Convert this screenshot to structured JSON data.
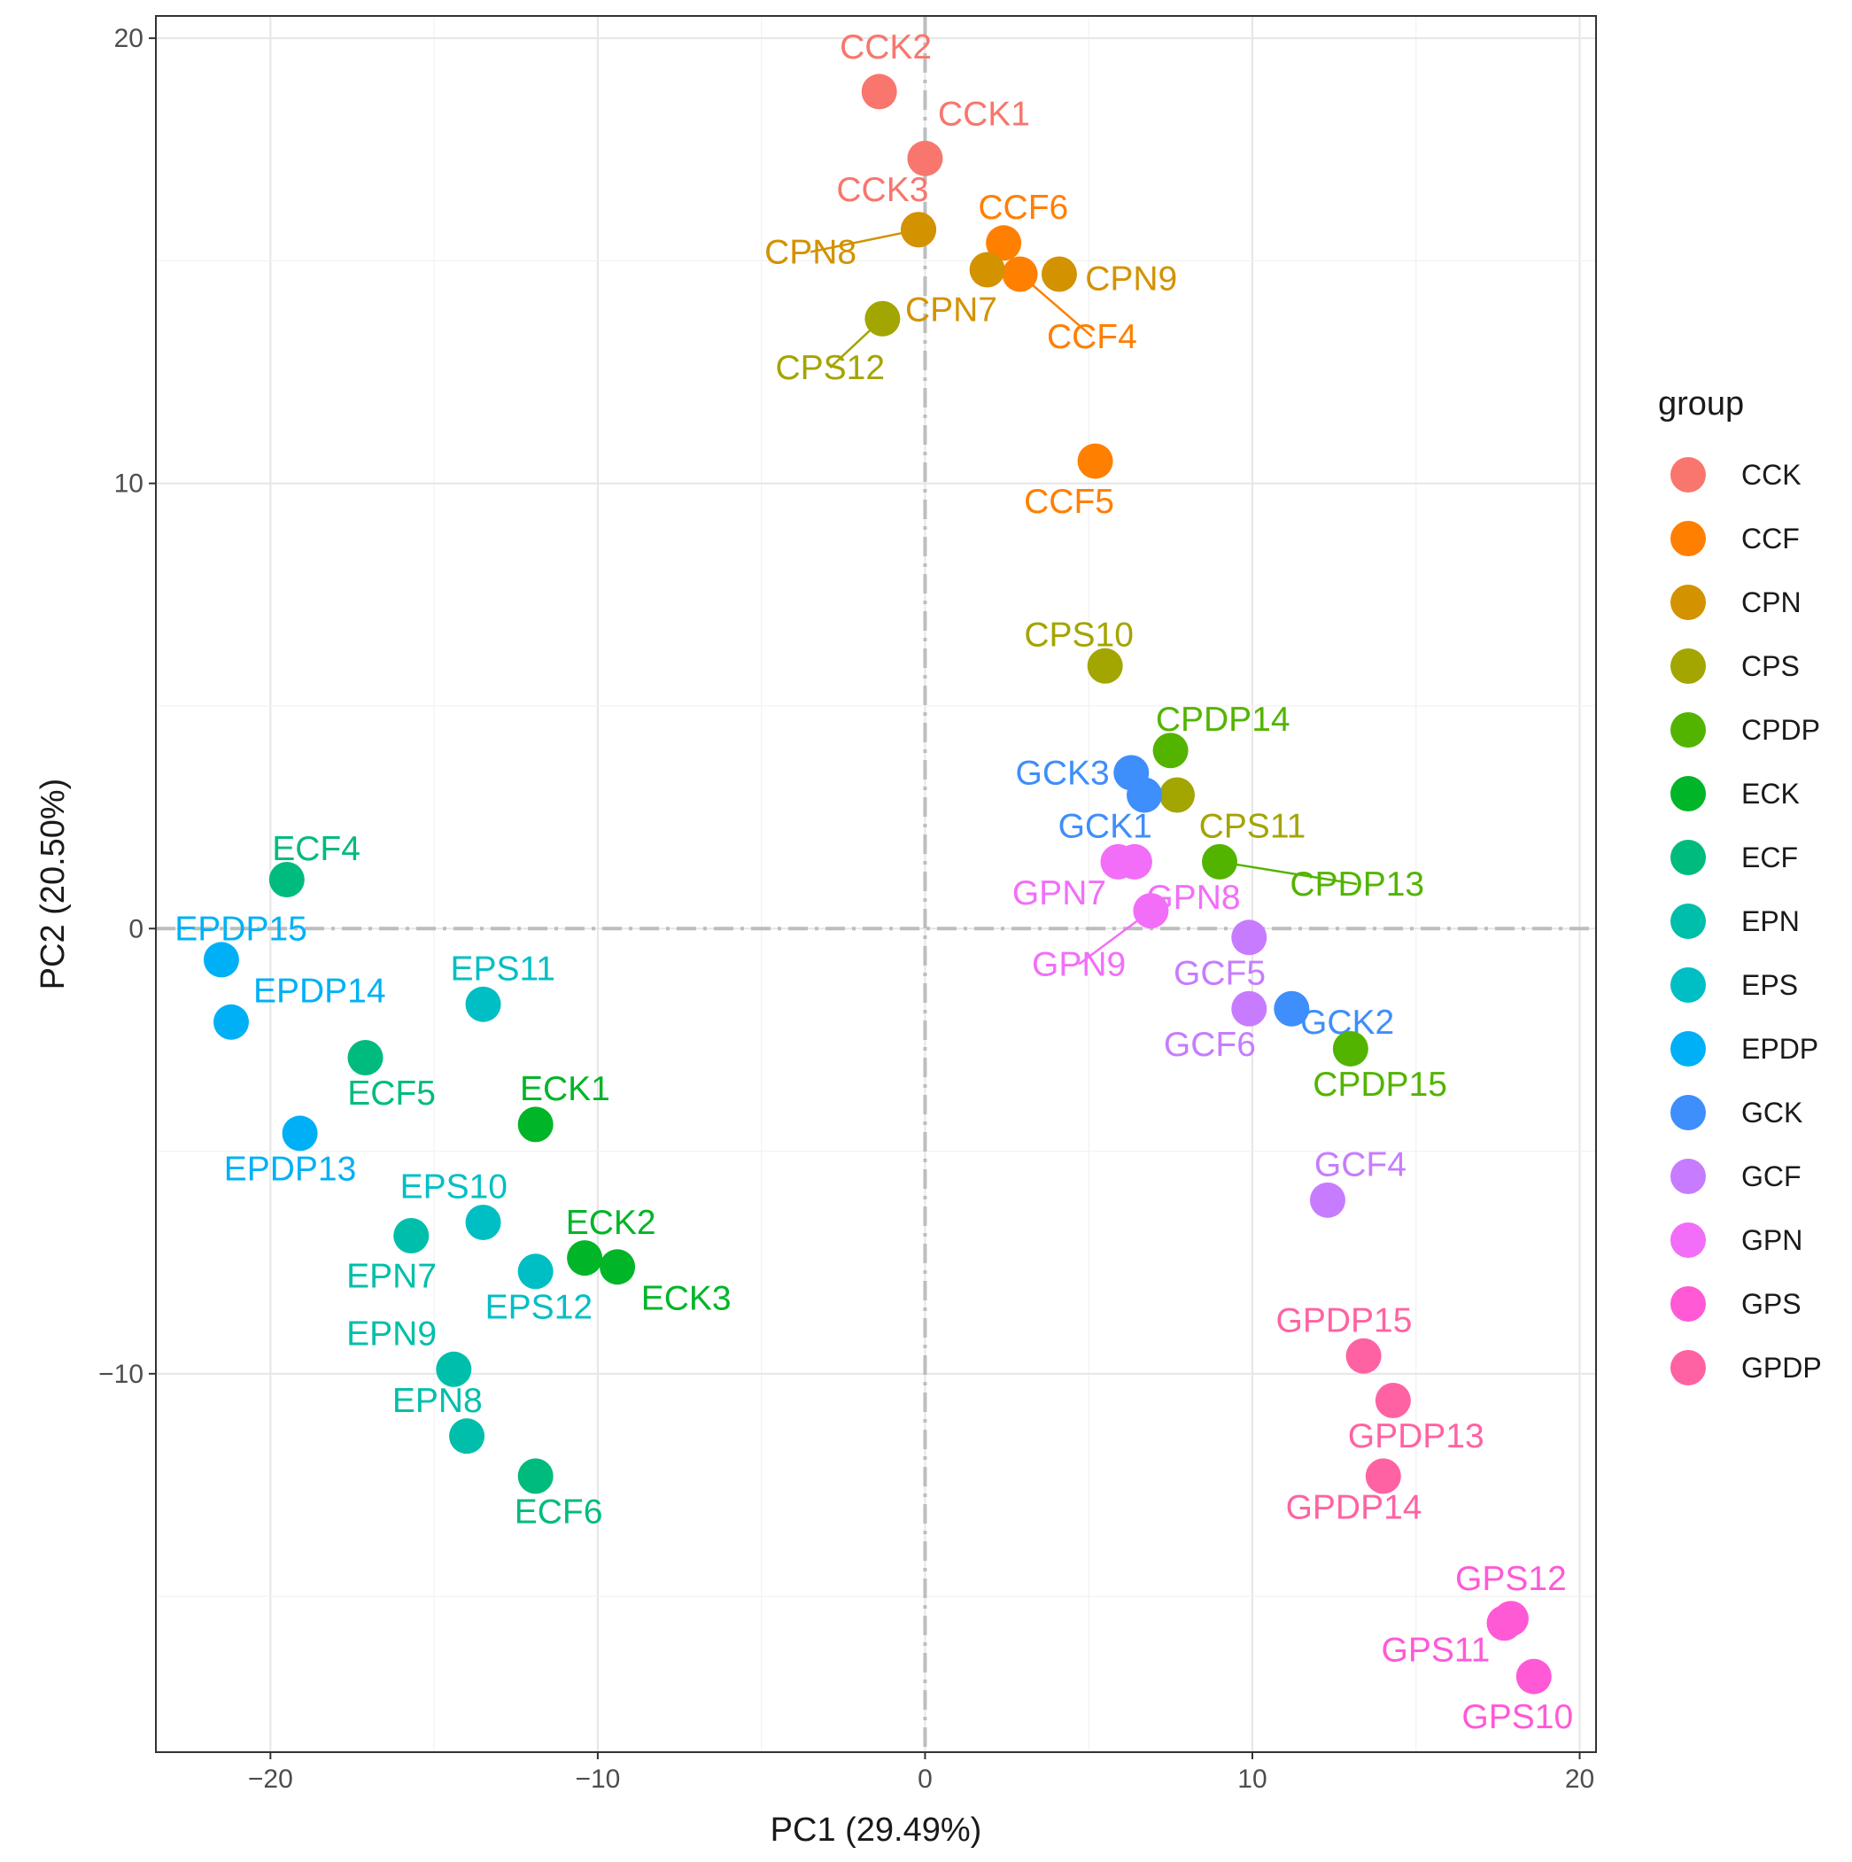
{
  "chart_data": {
    "type": "scatter",
    "title": "",
    "xlabel": "PC1 (29.49%)",
    "ylabel": "PC2 (20.50%)",
    "xlim": [
      -23.5,
      20.5
    ],
    "ylim": [
      -18.5,
      20.5
    ],
    "xticks": [
      -20,
      -10,
      0,
      10,
      20
    ],
    "yticks": [
      -10,
      0,
      10,
      20
    ],
    "xtick_labels": [
      "−20",
      "−10",
      "0",
      "10",
      "20"
    ],
    "ytick_labels": [
      "−10",
      "0",
      "10",
      "20"
    ],
    "grid": true,
    "reference_lines": {
      "x": 0,
      "y": 0,
      "style": "dash-dot"
    },
    "legend_title": "group",
    "legend_position": "right",
    "groups": [
      {
        "name": "CCK",
        "color": "#F8766D"
      },
      {
        "name": "CCF",
        "color": "#FF7F00"
      },
      {
        "name": "CPN",
        "color": "#D39200"
      },
      {
        "name": "CPS",
        "color": "#A3A500"
      },
      {
        "name": "CPDP",
        "color": "#53B400"
      },
      {
        "name": "ECK",
        "color": "#00B528"
      },
      {
        "name": "ECF",
        "color": "#00BB7E"
      },
      {
        "name": "EPN",
        "color": "#00BFAA"
      },
      {
        "name": "EPS",
        "color": "#00BFC4"
      },
      {
        "name": "EPDP",
        "color": "#00B0F6"
      },
      {
        "name": "GCK",
        "color": "#3E8EFB"
      },
      {
        "name": "GCF",
        "color": "#C77CFF"
      },
      {
        "name": "GPN",
        "color": "#F26EF9"
      },
      {
        "name": "GPS",
        "color": "#FF59D6"
      },
      {
        "name": "GPDP",
        "color": "#FF62A2"
      }
    ],
    "points": [
      {
        "label": "CCK2",
        "group": "CCK",
        "x": -1.4,
        "y": 18.8,
        "lx": -1.2,
        "ly": 19.8,
        "leader": false
      },
      {
        "label": "CCK1",
        "group": "CCK",
        "x": 0.0,
        "y": 17.3,
        "lx": 1.8,
        "ly": 18.3,
        "leader": false
      },
      {
        "label": "CCK3",
        "group": "CCK",
        "x": -0.2,
        "y": 15.7,
        "lx": -1.3,
        "ly": 16.6,
        "leader": false
      },
      {
        "label": "CCF6",
        "group": "CCF",
        "x": 2.4,
        "y": 15.4,
        "lx": 3.0,
        "ly": 16.2,
        "leader": false
      },
      {
        "label": "CCF4",
        "group": "CCF",
        "x": 2.9,
        "y": 14.7,
        "lx": 5.1,
        "ly": 13.3,
        "leader": true
      },
      {
        "label": "CCF5",
        "group": "CCF",
        "x": 5.2,
        "y": 10.5,
        "lx": 4.4,
        "ly": 9.6,
        "leader": false
      },
      {
        "label": "CPN8",
        "group": "CPN",
        "x": -0.2,
        "y": 15.7,
        "lx": -3.5,
        "ly": 15.2,
        "leader": true
      },
      {
        "label": "CPN7",
        "group": "CPN",
        "x": 1.9,
        "y": 14.8,
        "lx": 0.8,
        "ly": 13.9,
        "leader": false
      },
      {
        "label": "CPN9",
        "group": "CPN",
        "x": 4.1,
        "y": 14.7,
        "lx": 6.3,
        "ly": 14.6,
        "leader": false
      },
      {
        "label": "CPS12",
        "group": "CPS",
        "x": -1.3,
        "y": 13.7,
        "lx": -2.9,
        "ly": 12.6,
        "leader": true
      },
      {
        "label": "CPS10",
        "group": "CPS",
        "x": 5.5,
        "y": 5.9,
        "lx": 4.7,
        "ly": 6.6,
        "leader": false
      },
      {
        "label": "CPS11",
        "group": "CPS",
        "x": 7.7,
        "y": 3.0,
        "lx": 10.0,
        "ly": 2.3,
        "leader": false
      },
      {
        "label": "CPDP14",
        "group": "CPDP",
        "x": 7.5,
        "y": 4.0,
        "lx": 9.1,
        "ly": 4.7,
        "leader": false
      },
      {
        "label": "CPDP13",
        "group": "CPDP",
        "x": 9.0,
        "y": 1.5,
        "lx": 13.2,
        "ly": 1.0,
        "leader": true
      },
      {
        "label": "CPDP15",
        "group": "CPDP",
        "x": 13.0,
        "y": -2.7,
        "lx": 13.9,
        "ly": -3.5,
        "leader": false
      },
      {
        "label": "ECK1",
        "group": "ECK",
        "x": -11.9,
        "y": -4.4,
        "lx": -11.0,
        "ly": -3.6,
        "leader": false
      },
      {
        "label": "ECK2",
        "group": "ECK",
        "x": -10.4,
        "y": -7.4,
        "lx": -9.6,
        "ly": -6.6,
        "leader": false
      },
      {
        "label": "ECK3",
        "group": "ECK",
        "x": -9.4,
        "y": -7.6,
        "lx": -7.3,
        "ly": -8.3,
        "leader": false
      },
      {
        "label": "ECF4",
        "group": "ECF",
        "x": -19.5,
        "y": 1.1,
        "lx": -18.6,
        "ly": 1.8,
        "leader": false
      },
      {
        "label": "ECF5",
        "group": "ECF",
        "x": -17.1,
        "y": -2.9,
        "lx": -16.3,
        "ly": -3.7,
        "leader": false
      },
      {
        "label": "ECF6",
        "group": "ECF",
        "x": -11.9,
        "y": -12.3,
        "lx": -11.2,
        "ly": -13.1,
        "leader": false
      },
      {
        "label": "EPN7",
        "group": "EPN",
        "x": -15.7,
        "y": -6.9,
        "lx": -16.3,
        "ly": -7.8,
        "leader": false
      },
      {
        "label": "EPN9",
        "group": "EPN",
        "x": -14.4,
        "y": -9.9,
        "lx": -16.3,
        "ly": -9.1,
        "leader": false
      },
      {
        "label": "EPN8",
        "group": "EPN",
        "x": -14.0,
        "y": -11.4,
        "lx": -14.9,
        "ly": -10.6,
        "leader": false
      },
      {
        "label": "EPS11",
        "group": "EPS",
        "x": -13.5,
        "y": -1.7,
        "lx": -12.9,
        "ly": -0.9,
        "leader": false
      },
      {
        "label": "EPS10",
        "group": "EPS",
        "x": -13.5,
        "y": -6.6,
        "lx": -14.4,
        "ly": -5.8,
        "leader": false
      },
      {
        "label": "EPS12",
        "group": "EPS",
        "x": -11.9,
        "y": -7.7,
        "lx": -11.8,
        "ly": -8.5,
        "leader": false
      },
      {
        "label": "EPDP15",
        "group": "EPDP",
        "x": -21.5,
        "y": -0.7,
        "lx": -20.9,
        "ly": 0.0,
        "leader": false
      },
      {
        "label": "EPDP14",
        "group": "EPDP",
        "x": -21.2,
        "y": -2.1,
        "lx": -18.5,
        "ly": -1.4,
        "leader": false
      },
      {
        "label": "EPDP13",
        "group": "EPDP",
        "x": -19.1,
        "y": -4.6,
        "lx": -19.4,
        "ly": -5.4,
        "leader": false
      },
      {
        "label": "GCK3",
        "group": "GCK",
        "x": 6.3,
        "y": 3.5,
        "lx": 4.2,
        "ly": 3.5,
        "leader": false
      },
      {
        "label": "GCK1",
        "group": "GCK",
        "x": 6.7,
        "y": 3.0,
        "lx": 5.5,
        "ly": 2.3,
        "leader": false
      },
      {
        "label": "GCK2",
        "group": "GCK",
        "x": 11.2,
        "y": -1.8,
        "lx": 12.9,
        "ly": -2.1,
        "leader": false
      },
      {
        "label": "GCF5",
        "group": "GCF",
        "x": 9.9,
        "y": -0.2,
        "lx": 9.0,
        "ly": -1.0,
        "leader": false
      },
      {
        "label": "GCF6",
        "group": "GCF",
        "x": 9.9,
        "y": -1.8,
        "lx": 8.7,
        "ly": -2.6,
        "leader": false
      },
      {
        "label": "GCF4",
        "group": "GCF",
        "x": 12.3,
        "y": -6.1,
        "lx": 13.3,
        "ly": -5.3,
        "leader": false
      },
      {
        "label": "GPN7",
        "group": "GPN",
        "x": 5.9,
        "y": 1.5,
        "lx": 4.1,
        "ly": 0.8,
        "leader": false
      },
      {
        "label": "GPN8",
        "group": "GPN",
        "x": 6.4,
        "y": 1.5,
        "lx": 8.2,
        "ly": 0.7,
        "leader": false
      },
      {
        "label": "GPN9",
        "group": "GPN",
        "x": 6.9,
        "y": 0.4,
        "lx": 4.7,
        "ly": -0.8,
        "leader": true
      },
      {
        "label": "GPS12",
        "group": "GPS",
        "x": 17.9,
        "y": -15.5,
        "lx": 17.9,
        "ly": -14.6,
        "leader": false
      },
      {
        "label": "GPS11",
        "group": "GPS",
        "x": 17.7,
        "y": -15.6,
        "lx": 15.6,
        "ly": -16.2,
        "leader": false
      },
      {
        "label": "GPS10",
        "group": "GPS",
        "x": 18.6,
        "y": -16.8,
        "lx": 18.1,
        "ly": -17.7,
        "leader": false
      },
      {
        "label": "GPDP15",
        "group": "GPDP",
        "x": 13.4,
        "y": -9.6,
        "lx": 12.8,
        "ly": -8.8,
        "leader": false
      },
      {
        "label": "GPDP13",
        "group": "GPDP",
        "x": 14.3,
        "y": -10.6,
        "lx": 15.0,
        "ly": -11.4,
        "leader": false
      },
      {
        "label": "GPDP14",
        "group": "GPDP",
        "x": 14.0,
        "y": -12.3,
        "lx": 13.1,
        "ly": -13.0,
        "leader": false
      }
    ]
  }
}
